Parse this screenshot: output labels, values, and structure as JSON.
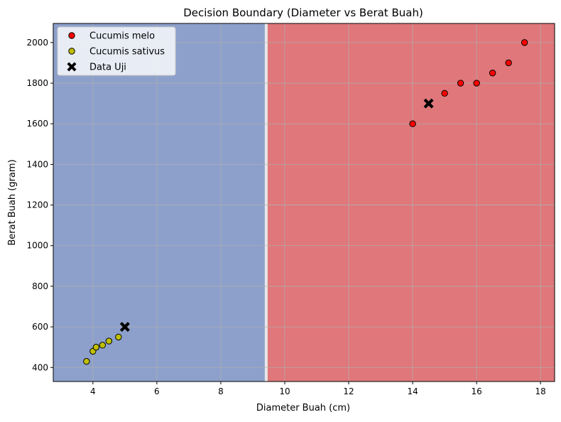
{
  "chart_data": {
    "type": "scatter",
    "title": "Decision Boundary (Diameter vs Berat Buah)",
    "xlabel": "Diameter Buah (cm)",
    "ylabel": "Berat Buah (gram)",
    "xlim": [
      2.76,
      18.44
    ],
    "ylim": [
      331,
      2094
    ],
    "xticks": [
      4,
      6,
      8,
      10,
      12,
      14,
      16,
      18
    ],
    "yticks": [
      400,
      600,
      800,
      1000,
      1200,
      1400,
      1600,
      1800,
      2000
    ],
    "grid": true,
    "legend_position": "upper left",
    "boundary_x": 9.42,
    "regions": [
      {
        "side": "left",
        "color": "#8da0cb"
      },
      {
        "side": "right",
        "color": "#df777b"
      }
    ],
    "series": [
      {
        "name": "Cucumis melo",
        "marker": "circle",
        "color": "#ff0000",
        "points": [
          [
            14,
            1600
          ],
          [
            15,
            1750
          ],
          [
            15.5,
            1800
          ],
          [
            16,
            1800
          ],
          [
            16.5,
            1850
          ],
          [
            17,
            1900
          ],
          [
            17.5,
            2000
          ]
        ]
      },
      {
        "name": "Cucumis sativus",
        "marker": "circle",
        "color": "#bfbf00",
        "points": [
          [
            3.8,
            430
          ],
          [
            4,
            480
          ],
          [
            4.1,
            500
          ],
          [
            4.3,
            510
          ],
          [
            4.5,
            530
          ],
          [
            4.8,
            550
          ]
        ]
      },
      {
        "name": "Data Uji",
        "marker": "x",
        "color": "#000000",
        "points": [
          [
            14.5,
            1700
          ],
          [
            5,
            600
          ]
        ]
      }
    ]
  }
}
